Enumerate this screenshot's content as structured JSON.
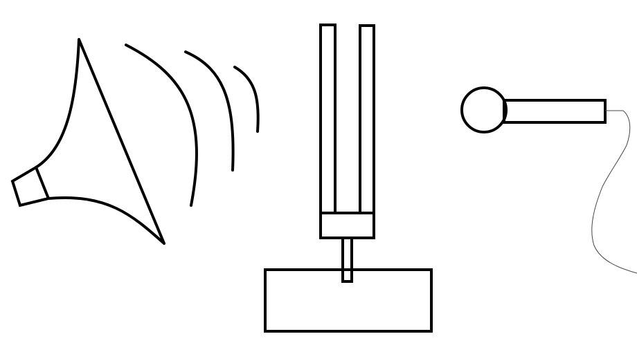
{
  "colors": {
    "background": "#ffffff",
    "ink": "#000000",
    "cable": "#444444"
  },
  "icons": {
    "loudspeaker": "loudspeaker-icon",
    "sound_waves": "sound-wave-icon",
    "tuning_fork": "tuning-fork-icon",
    "resonance_box": "resonance-box-icon",
    "microphone": "microphone-icon",
    "cable": "cable-icon"
  }
}
